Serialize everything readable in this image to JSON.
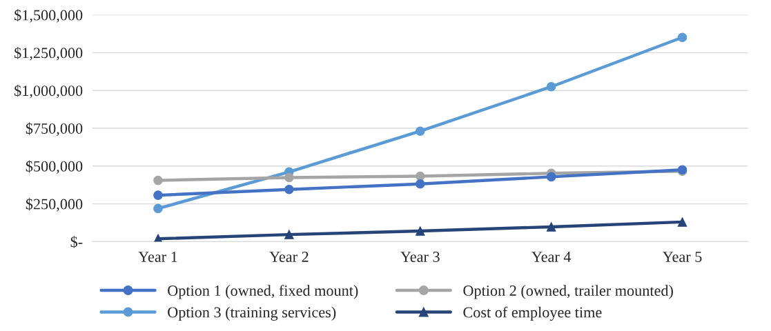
{
  "chart_data": {
    "type": "line",
    "categories": [
      "Year 1",
      "Year 2",
      "Year 3",
      "Year 4",
      "Year 5"
    ],
    "series": [
      {
        "name": "Option 1 (owned, fixed mount)",
        "color": "#4472c4",
        "marker": "circle",
        "values": [
          307000,
          345000,
          382000,
          429000,
          475000
        ]
      },
      {
        "name": "Option 2 (owned, trailer mounted)",
        "color": "#a5a5a5",
        "marker": "circle",
        "values": [
          405000,
          424000,
          433000,
          452000,
          466000
        ]
      },
      {
        "name": "Option 3 (training services)",
        "color": "#5b9bd5",
        "marker": "circle",
        "values": [
          219000,
          461000,
          731000,
          1025000,
          1351000
        ]
      },
      {
        "name": "Cost of employee time",
        "color": "#264478",
        "marker": "triangle",
        "values": [
          19000,
          47000,
          70000,
          98000,
          130000
        ]
      }
    ],
    "ylim": [
      0,
      1500000
    ],
    "yticks": [
      {
        "value": 0,
        "label": "$-"
      },
      {
        "value": 250000,
        "label": "$250,000"
      },
      {
        "value": 500000,
        "label": "$500,000"
      },
      {
        "value": 750000,
        "label": "$750,000"
      },
      {
        "value": 1000000,
        "label": "$1,000,000"
      },
      {
        "value": 1250000,
        "label": "$1,250,000"
      },
      {
        "value": 1500000,
        "label": "$1,500,000"
      }
    ],
    "grid": "y",
    "legend": "bottom",
    "line_style": "solid"
  }
}
